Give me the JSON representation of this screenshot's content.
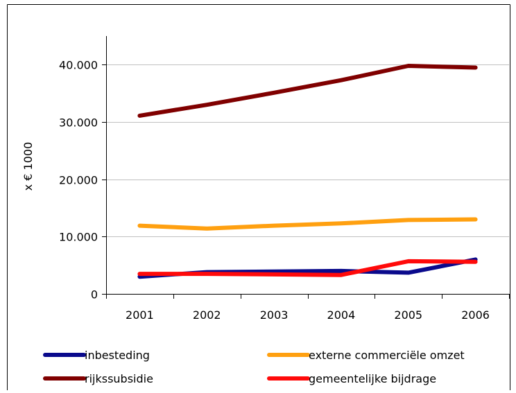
{
  "chart_data": {
    "type": "line",
    "title": "",
    "xlabel": "",
    "ylabel": "x € 1000",
    "categories": [
      "2001",
      "2002",
      "2003",
      "2004",
      "2005",
      "2006"
    ],
    "ylim": [
      0,
      45000
    ],
    "yticks": [
      0,
      10000,
      20000,
      30000,
      40000
    ],
    "ytick_labels": [
      "0",
      "10.000",
      "20.000",
      "30.000",
      "40.000"
    ],
    "grid": true,
    "legend_position": "bottom",
    "series": [
      {
        "name": "inbesteding",
        "color": "#0a0a8c",
        "values": [
          3000,
          3800,
          3900,
          4000,
          3700,
          6000
        ]
      },
      {
        "name": "externe commerciële omzet",
        "color": "#ffa010",
        "values": [
          11900,
          11400,
          11900,
          12300,
          12900,
          13000
        ]
      },
      {
        "name": "rijkssubsidie",
        "color": "#800000",
        "values": [
          31100,
          33000,
          35100,
          37300,
          39800,
          39500
        ]
      },
      {
        "name": "gemeentelijke bijdrage",
        "color": "#ff0a0a",
        "values": [
          3500,
          3500,
          3400,
          3300,
          5700,
          5600
        ]
      }
    ]
  }
}
